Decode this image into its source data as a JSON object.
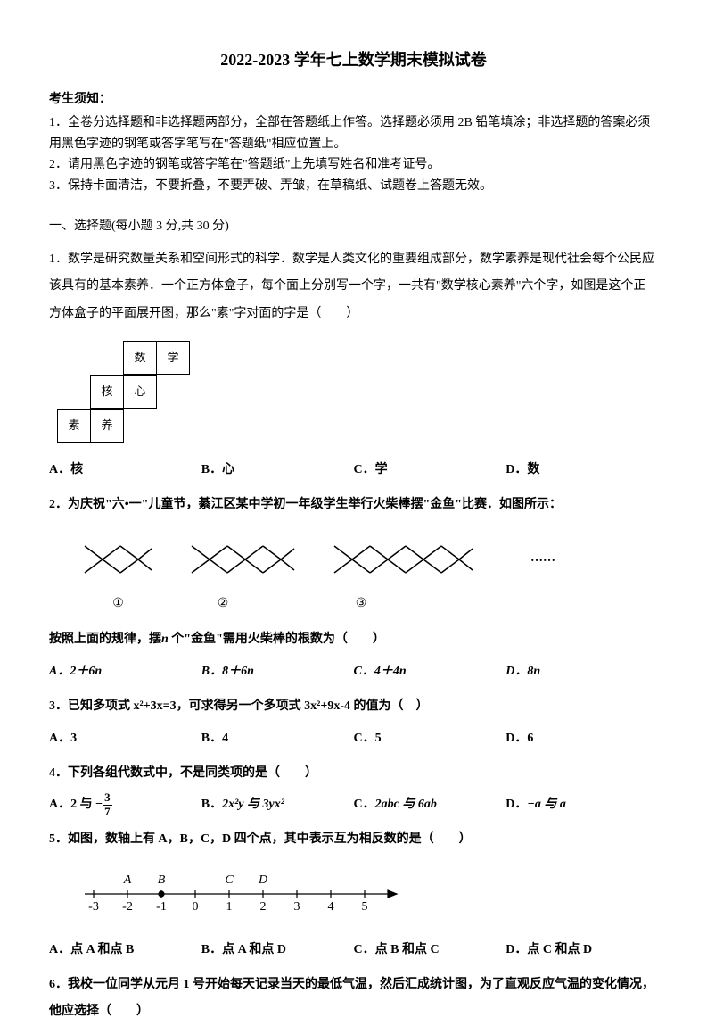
{
  "title": "2022-2023 学年七上数学期末模拟试卷",
  "notice": {
    "header": "考生须知：",
    "lines": [
      "1．全卷分选择题和非选择题两部分，全部在答题纸上作答。选择题必须用 2B 铅笔填涂；非选择题的答案必须用黑色字迹的钢笔或答字笔写在\"答题纸\"相应位置上。",
      "2．请用黑色字迹的钢笔或答字笔在\"答题纸\"上先填写姓名和准考证号。",
      "3．保持卡面清洁，不要折叠，不要弄破、弄皱，在草稿纸、试题卷上答题无效。"
    ]
  },
  "section1": {
    "header": "一、选择题(每小题 3 分,共 30 分)"
  },
  "q1": {
    "text": "1．数学是研究数量关系和空间形式的科学．数学是人类文化的重要组成部分，数学素养是现代社会每个公民应该具有的基本素养．一个正方体盒子，每个面上分别写一个字，一共有\"数学核心素养\"六个字，如图是这个正方体盒子的平面展开图，那么\"素\"字对面的字是（　　）",
    "cube": {
      "cells": [
        "数",
        "学",
        "核",
        "心",
        "素",
        "养"
      ]
    },
    "options": {
      "A": "A．核",
      "B": "B．心",
      "C": "C．学",
      "D": "D．数"
    }
  },
  "q2": {
    "text": "2．为庆祝\"六•一\"儿童节，綦江区某中学初一年级学生举行火柴棒摆\"金鱼\"比赛．如图所示：",
    "pattern_label": "按照上面的规律，摆",
    "pattern_var": "n",
    "pattern_label2": " 个\"金鱼\"需用火柴棒的根数为（　　）",
    "fish_labels": [
      "①",
      "②",
      "③"
    ],
    "dots": "……",
    "options": {
      "A": "A．2＋6n",
      "B": "B．8＋6n",
      "C": "C．4＋4n",
      "D": "D．8n"
    }
  },
  "q3": {
    "text": "3．已知多项式 x²+3x=3，可求得另一个多项式 3x²+9x-4 的值为（　）",
    "options": {
      "A": "A．3",
      "B": "B．4",
      "C": "C．5",
      "D": "D．6"
    }
  },
  "q4": {
    "text": "4．下列各组代数式中，不是同类项的是（　　）",
    "options": {
      "A_prefix": "A．2 与",
      "A_frac_num": "3",
      "A_frac_den": "7",
      "B": "B．",
      "B_math": "2x²y 与 3yx²",
      "C": "C．",
      "C_math": "2abc 与 6ab",
      "D": "D．",
      "D_math": "−a 与 a"
    }
  },
  "q5": {
    "text": "5．如图，数轴上有 A，B，C，D 四个点，其中表示互为相反数的是（　　）",
    "numberline": {
      "labels_top": [
        "A",
        "B",
        "C",
        "D"
      ],
      "labels_top_pos": [
        -2,
        -1,
        1,
        2
      ],
      "ticks": [
        -3,
        -2,
        -1,
        0,
        1,
        2,
        3,
        4,
        5
      ],
      "min": -3,
      "max": 5
    },
    "options": {
      "A": "A．点 A 和点 B",
      "B": "B．点 A 和点 D",
      "C": "C．点 B 和点 C",
      "D": "D．点 C 和点 D"
    }
  },
  "q6": {
    "text": "6．我校一位同学从元月 1 号开始每天记录当天的最低气温，然后汇成统计图，为了直观反应气温的变化情况，他应选择（　　）"
  },
  "colors": {
    "text": "#000000",
    "background": "#ffffff",
    "border": "#000000"
  }
}
